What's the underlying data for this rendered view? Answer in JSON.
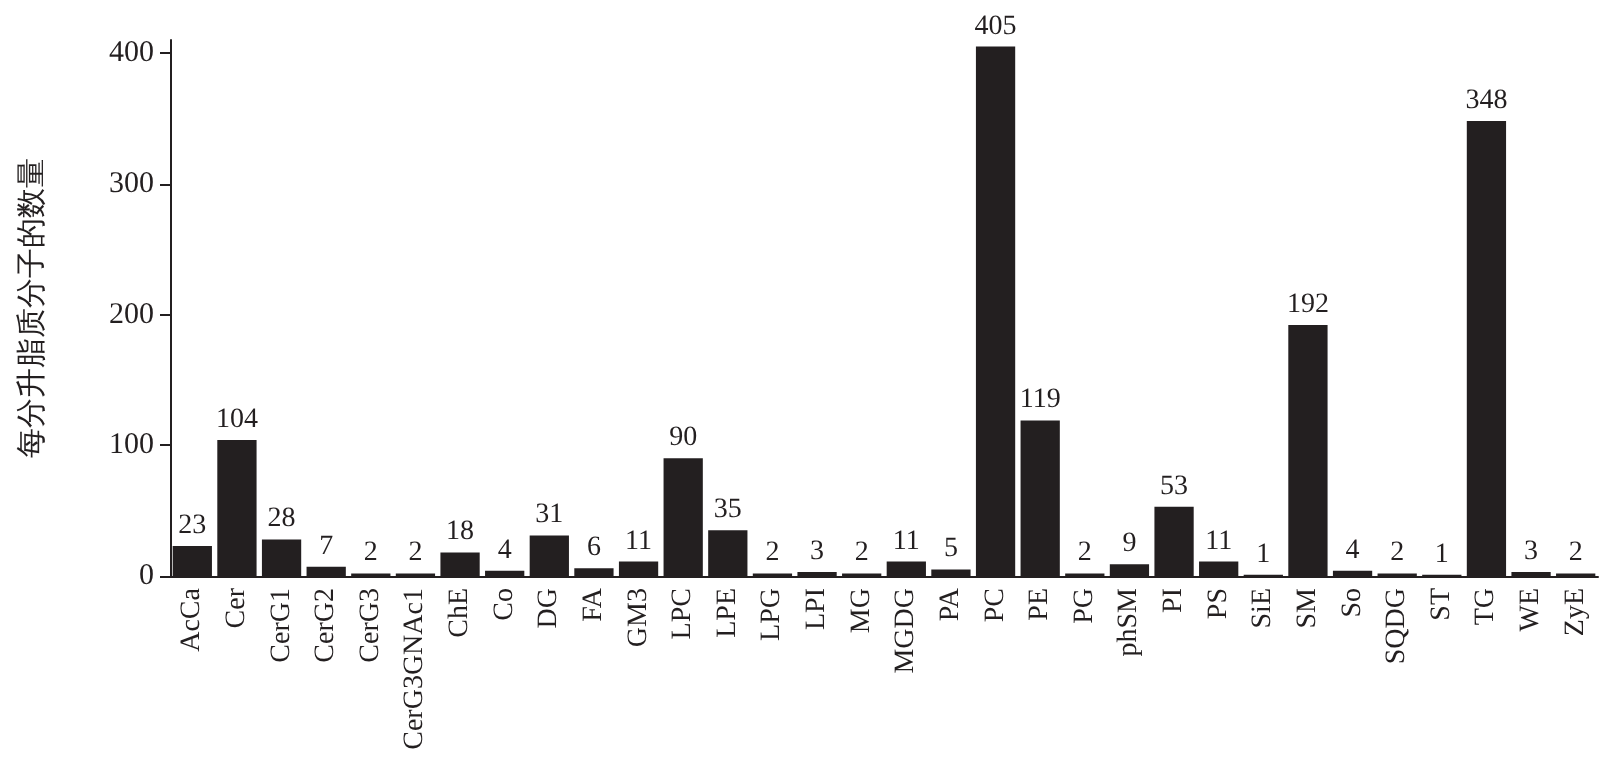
{
  "chart_data": {
    "type": "bar",
    "ylabel": "每分升脂质分子的数量",
    "categories": [
      "AcCa",
      "Cer",
      "CerG1",
      "CerG2",
      "CerG3",
      "CerG3GNAc1",
      "ChE",
      "Co",
      "DG",
      "FA",
      "GM3",
      "LPC",
      "LPE",
      "LPG",
      "LPI",
      "MG",
      "MGDG",
      "PA",
      "PC",
      "PE",
      "PG",
      "phSM",
      "PI",
      "PS",
      "SiE",
      "SM",
      "So",
      "SQDG",
      "ST",
      "TG",
      "WE",
      "ZyE"
    ],
    "values": [
      23,
      104,
      28,
      7,
      2,
      2,
      18,
      4,
      31,
      6,
      11,
      90,
      35,
      2,
      3,
      2,
      11,
      5,
      405,
      119,
      2,
      9,
      53,
      11,
      1,
      192,
      4,
      2,
      1,
      348,
      3,
      2
    ],
    "color": "#231f20",
    "ylim": [
      0,
      410
    ],
    "yticks": [
      0,
      100,
      200,
      300,
      400
    ],
    "grid": false,
    "data_labels": true
  }
}
